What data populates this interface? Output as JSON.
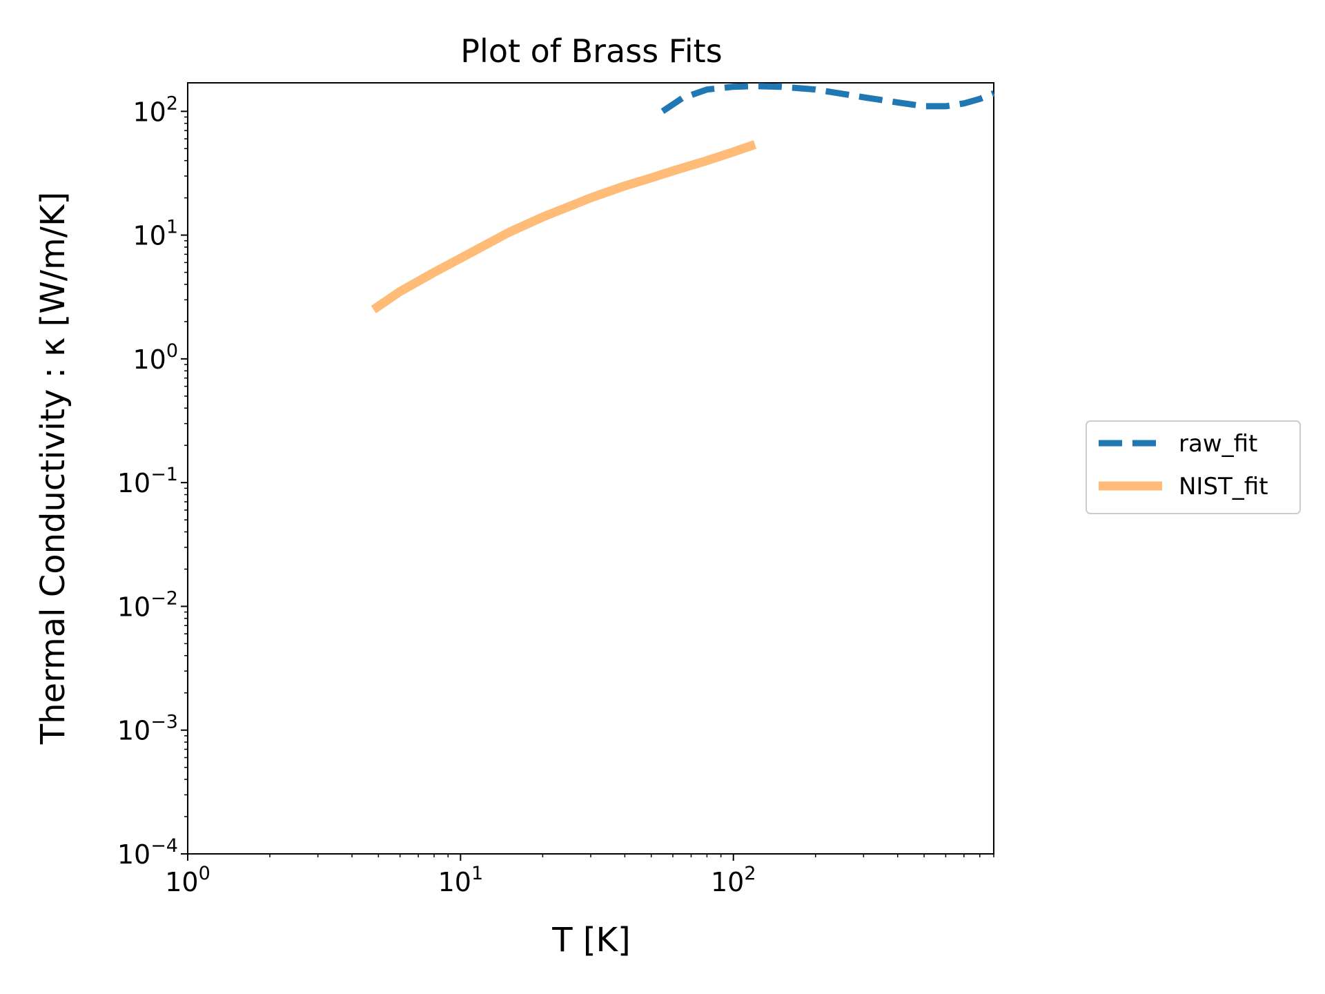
{
  "chart_data": {
    "type": "line",
    "title": "Plot of Brass Fits",
    "xlabel": "T [K]",
    "ylabel": "Thermal Conductivity : κ [W/m/K]",
    "x_scale": "log",
    "y_scale": "log",
    "xlim": [
      1,
      900
    ],
    "ylim": [
      0.0001,
      170
    ],
    "x_ticks": [
      {
        "value": 1,
        "base": "10",
        "exp": "0"
      },
      {
        "value": 10,
        "base": "10",
        "exp": "1"
      },
      {
        "value": 100,
        "base": "10",
        "exp": "2"
      }
    ],
    "y_ticks": [
      {
        "value": 0.0001,
        "base": "10",
        "exp": "−4"
      },
      {
        "value": 0.001,
        "base": "10",
        "exp": "−3"
      },
      {
        "value": 0.01,
        "base": "10",
        "exp": "−2"
      },
      {
        "value": 0.1,
        "base": "10",
        "exp": "−1"
      },
      {
        "value": 1,
        "base": "10",
        "exp": "0"
      },
      {
        "value": 10,
        "base": "10",
        "exp": "1"
      },
      {
        "value": 100,
        "base": "10",
        "exp": "2"
      }
    ],
    "grid": false,
    "legend_position": "center-right outside",
    "series": [
      {
        "name": "raw_fit",
        "color": "#1f77b4",
        "style": "dashed",
        "x": [
          55,
          65,
          80,
          100,
          120,
          150,
          200,
          300,
          400,
          500,
          600,
          700,
          800,
          900
        ],
        "y": [
          100,
          128,
          150,
          158,
          160,
          158,
          150,
          130,
          118,
          110,
          110,
          116,
          126,
          140
        ]
      },
      {
        "name": "NIST_fit",
        "color": "#ffbb78",
        "style": "solid",
        "x": [
          4.8,
          6,
          8,
          10,
          15,
          20,
          30,
          40,
          50,
          60,
          80,
          100,
          120
        ],
        "y": [
          2.5,
          3.5,
          5.0,
          6.5,
          10.5,
          14.0,
          20.0,
          25.0,
          29.0,
          33.0,
          40.0,
          47.0,
          54.0
        ]
      }
    ]
  }
}
